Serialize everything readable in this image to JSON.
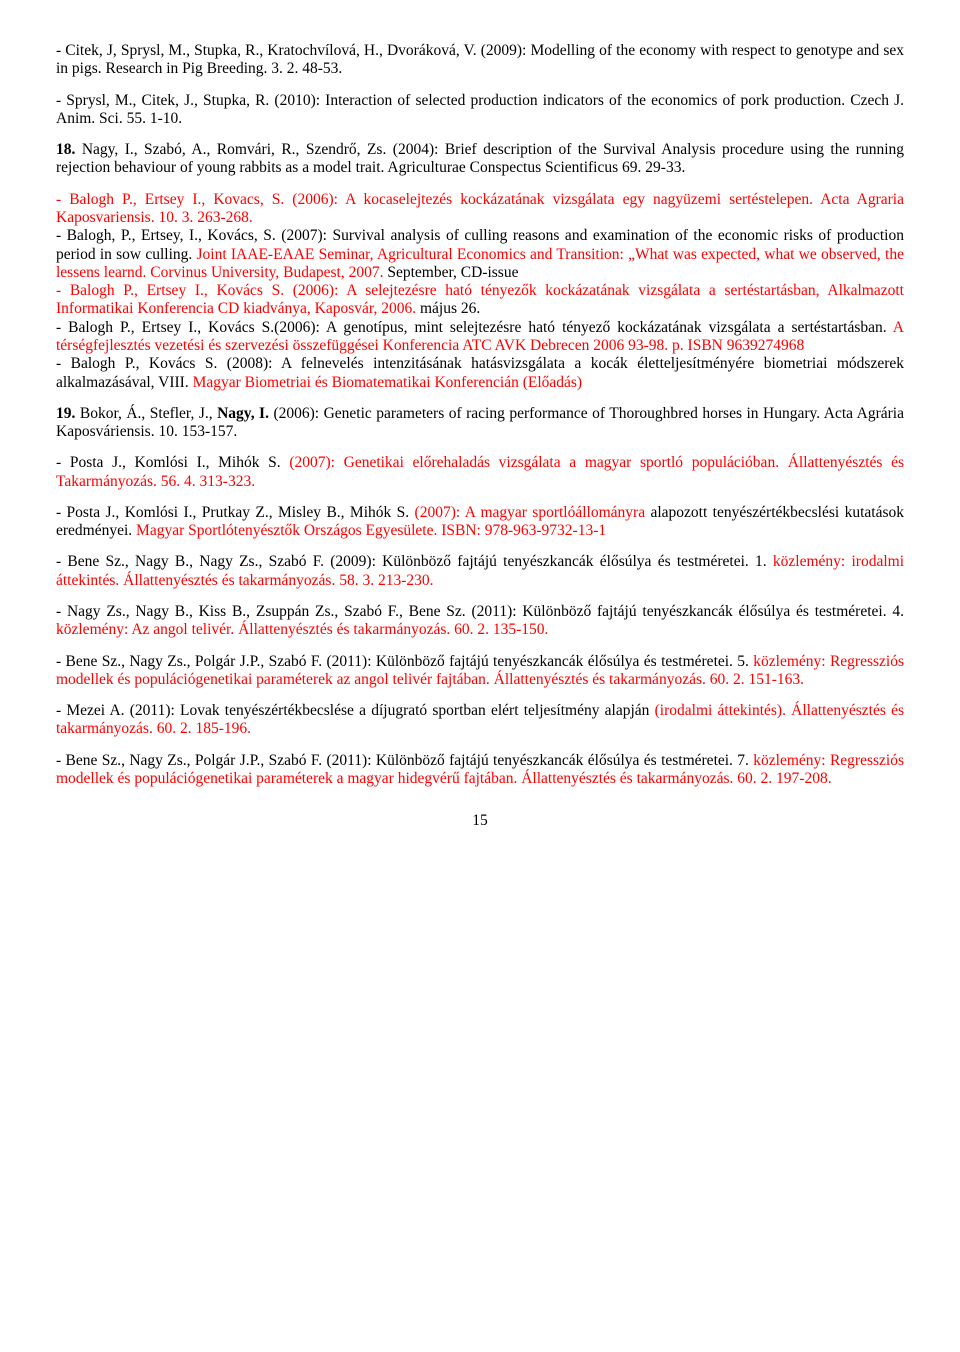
{
  "p1": {
    "t1": "- Citek, J, Sprysl, M., Stupka, R., Kratochvílová, H., Dvoráková, V. (2009): Modelling of the economy with respect to genotype and sex in pigs. Research in Pig Breeding. 3. 2. 48-53."
  },
  "p2": {
    "t1": "- Sprysl, M., Citek, J., Stupka, R. (2010): Interaction of selected production indicators of the economics of pork production. Czech J. Anim. Sci. 55. 1-10."
  },
  "p3": {
    "prefix": "18.",
    "t1": " Nagy, I., Szabó, A., Romvári, R., Szendrő, Zs. (2004): Brief description of the Survival Analysis procedure using the running rejection behaviour of young rabbits as a model trait. Agriculturae Conspectus Scientificus 69. 29-33."
  },
  "p4": {
    "r1": "- Balogh P., Ertsey I., Kovacs, S. (2006): A kocaselejtezés kockázatának vizsgálata egy nagyüzemi sertéstelepen. Acta Agraria Kaposvariensis. 10. 3. 263-268.",
    "b1": "- Balogh, P., Ertsey, I., Kovács, S. (2007): Survival analysis of culling reasons and examination of the economic risks of production period in sow culling. ",
    "r2": "Joint IAAE-EAAE Seminar, Agricultural Economics and Transition: „What was expected, what we observed, the lessens learnd. Corvinus University, Budapest, 2007.",
    "b2": " September, CD-issue",
    "r3": "- Balogh P., Ertsey I., Kovács S. (2006): A selejtezésre ható tényezők kockázatának vizsgálata a sertéstartásban, Alkalmazott Informatikai Konferencia CD kiadványa, Kaposvár, 2006.",
    "b3": " május 26.",
    "b4": "- Balogh P., Ertsey I., Kovács S.(2006): A genotípus, mint selejtezésre ható tényező kockázatának vizsgálata a sertéstartásban. ",
    "r4": "A térségfejlesztés vezetési és szervezési összefüggései Konferencia ATC AVK Debrecen 2006 93-98. p. ISBN 9639274968",
    "b5": "- Balogh P., Kovács S. (2008): A felnevelés intenzitásának hatásvizsgálata a kocák életteljesítményére  biometriai  módszerek  alkalmazásával,  VIII.  ",
    "r5": "Magyar  Biometriai  és Biomatematikai Konferencián (Előadás)"
  },
  "p5": {
    "prefix": "19.",
    "t1": " Bokor, Á., Stefler, J., ",
    "t2": "Nagy, I.",
    "t3": " (2006): Genetic parameters of racing performance of Thoroughbred horses in Hungary. Acta Agrária Kaposváriensis. 10. 153-157."
  },
  "p6": {
    "b1": "- Posta J., Komlósi I., Mihók S. ",
    "r1": "(2007): Genetikai előrehaladás vizsgálata a magyar sportló populációban. Állattenyésztés és Takarmányozás. 56. 4. 313-323."
  },
  "p7": {
    "b1": "- Posta J., Komlósi I., Prutkay Z., Misley B., Mihók S. ",
    "r1": "(2007): A magyar sportlóállományra ",
    "b2": "alapozott  tenyészértékbecslési  kutatások  eredményei.  ",
    "r2": "Magyar  Sportlótenyésztők  Országos Egyesülete. ISBN: 978-963-9732-13-1"
  },
  "p8": {
    "b1": "- Bene Sz., Nagy B., Nagy Zs., Szabó F. (2009): Különböző fajtájú tenyészkancák élősúlya és testméretei. 1. ",
    "r1": "közlemény: irodalmi áttekintés. Állattenyésztés és takarmányozás. 58. 3. 213-230."
  },
  "p9": {
    "b1": "- Nagy Zs., Nagy B., Kiss B., Zsuppán Zs., Szabó F., Bene Sz. (2011): Különböző fajtájú tenyészkancák élősúlya és testméretei. 4. ",
    "r1": "közlemény: Az angol telivér. Állattenyésztés és takarmányozás. 60. 2. 135-150."
  },
  "p10": {
    "b1": "- Bene Sz., Nagy Zs., Polgár J.P., Szabó F. (2011): Különböző fajtájú tenyészkancák élősúlya és testméretei. 5. ",
    "r1": "közlemény: Regressziós modellek és populációgenetikai paraméterek az angol telivér fajtában. Állattenyésztés és takarmányozás. 60. 2. 151-163."
  },
  "p11": {
    "b1": "- Mezei A. (2011): Lovak tenyészértékbecslése a díjugrató sportban elért teljesítmény alapján ",
    "r1": "(irodalmi áttekintés). Állattenyésztés és takarmányozás. 60. 2. 185-196."
  },
  "p12": {
    "b1": "- Bene Sz., Nagy Zs., Polgár J.P., Szabó F. (2011): Különböző fajtájú tenyészkancák élősúlya és testméretei. 7. ",
    "r1": "közlemény: Regressziós modellek és populációgenetikai paraméterek a magyar hidegvérű fajtában. Állattenyésztés és takarmányozás. 60. 2. 197-208."
  },
  "pagenum": "15"
}
